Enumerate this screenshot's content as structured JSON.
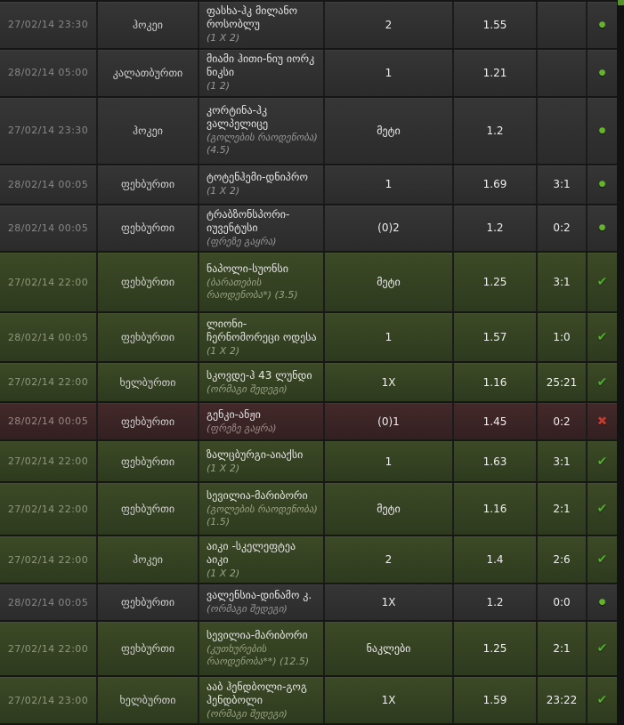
{
  "bets_table": {
    "status_glyphs": {
      "open": "●",
      "won": "✔",
      "lost": "✖"
    },
    "colors": {
      "row_open": "#313131",
      "row_won": "#39471f",
      "row_lost": "#3f2425",
      "pending_dot": "#64b42a",
      "won_check": "#4fb02a",
      "lost_cross": "#c23b31",
      "scroll_thumb": "#55942d"
    },
    "rows": [
      {
        "date": "27/02/14 23:30",
        "sport": "ჰოკეი",
        "event": "ფასხა-ჰკ მილანო როსობლუ",
        "market": "(1 X 2)",
        "selection": "2",
        "odds": "1.55",
        "score": "",
        "outcome": "open"
      },
      {
        "date": "28/02/14 05:00",
        "sport": "კალათბურთი",
        "event": "მიამი ჰითი-ნიუ იორკ ნიკსი",
        "market": "(1 2)",
        "selection": "1",
        "odds": "1.21",
        "score": "",
        "outcome": "open"
      },
      {
        "date": "27/02/14 23:30",
        "sport": "ჰოკეი",
        "event": "კორტინა-ჰკ ვალპელიცე",
        "market": "(გოლების რაოდენობა) (4.5)",
        "selection": "მეტი",
        "odds": "1.2",
        "score": "",
        "outcome": "open"
      },
      {
        "date": "28/02/14 00:05",
        "sport": "ფეხბურთი",
        "event": "ტოტენჰემი-დნიპრო",
        "market": "(1 X 2)",
        "selection": "1",
        "odds": "1.69",
        "score": "3:1",
        "outcome": "open"
      },
      {
        "date": "28/02/14 00:05",
        "sport": "ფეხბურთი",
        "event": "ტრაბზონსპორი-იუვენტუსი",
        "market": "(ფრეზე გაყრა)",
        "selection": "(0)2",
        "odds": "1.2",
        "score": "0:2",
        "outcome": "open"
      },
      {
        "date": "27/02/14 22:00",
        "sport": "ფეხბურთი",
        "event": "ნაპოლი-სუონსი",
        "market": "(ბარათების რაოდენობა*) (3.5)",
        "selection": "მეტი",
        "odds": "1.25",
        "score": "3:1",
        "outcome": "won"
      },
      {
        "date": "28/02/14 00:05",
        "sport": "ფეხბურთი",
        "event": "ლიონი-ჩერნომორეცი ოდესა",
        "market": "(1 X 2)",
        "selection": "1",
        "odds": "1.57",
        "score": "1:0",
        "outcome": "won"
      },
      {
        "date": "27/02/14 22:00",
        "sport": "ხელბურთი",
        "event": "სკოვდე-ჰ 43 ლუნდი",
        "market": "(ორმაგი შედეგი)",
        "selection": "1X",
        "odds": "1.16",
        "score": "25:21",
        "outcome": "won"
      },
      {
        "date": "28/02/14 00:05",
        "sport": "ფეხბურთი",
        "event": "გენკი-ანჟი",
        "market": "(ფრეზე გაყრა)",
        "selection": "(0)1",
        "odds": "1.45",
        "score": "0:2",
        "outcome": "lost"
      },
      {
        "date": "27/02/14 22:00",
        "sport": "ფეხბურთი",
        "event": "ზალცბურგი-აიაქსი",
        "market": "(1 X 2)",
        "selection": "1",
        "odds": "1.63",
        "score": "3:1",
        "outcome": "won"
      },
      {
        "date": "27/02/14 22:00",
        "sport": "ფეხბურთი",
        "event": "სევილია-მარიბორი",
        "market": "(გოლების რაოდენობა) (1.5)",
        "selection": "მეტი",
        "odds": "1.16",
        "score": "2:1",
        "outcome": "won"
      },
      {
        "date": "27/02/14 22:00",
        "sport": "ჰოკეი",
        "event": "აიკი -სკელეფტეა აიკი",
        "market": "(1 X 2)",
        "selection": "2",
        "odds": "1.4",
        "score": "2:6",
        "outcome": "won"
      },
      {
        "date": "28/02/14 00:05",
        "sport": "ფეხბურთი",
        "event": "ვალენსია-დინამო კ.",
        "market": "(ორმაგი შედეგი)",
        "selection": "1X",
        "odds": "1.2",
        "score": "0:0",
        "outcome": "open"
      },
      {
        "date": "27/02/14 22:00",
        "sport": "ფეხბურთი",
        "event": "სევილია-მარიბორი",
        "market": "(კუთხურების რაოდენობა**) (12.5)",
        "selection": "ნაკლები",
        "odds": "1.25",
        "score": "2:1",
        "outcome": "won"
      },
      {
        "date": "27/02/14 23:00",
        "sport": "ხელბურთი",
        "event": "ააბ ჰენდბოლი-გოგ ჰენდბოლი",
        "market": "(ორმაგი შედეგი)",
        "selection": "1X",
        "odds": "1.59",
        "score": "23:22",
        "outcome": "won"
      }
    ]
  }
}
